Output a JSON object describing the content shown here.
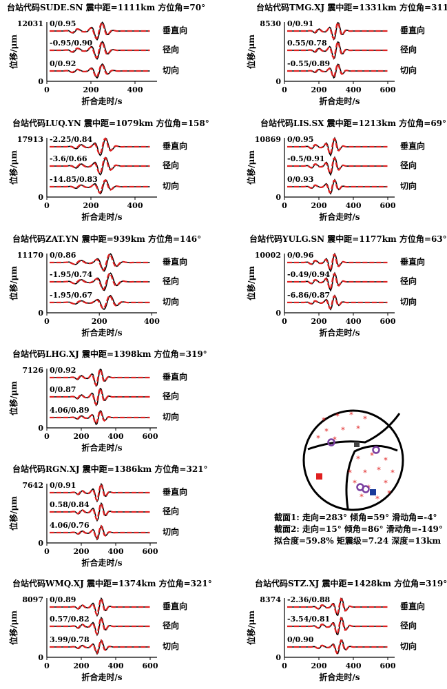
{
  "chart_data": [
    {
      "type": "line",
      "title": "台站代码SUDE.SN 震中距=1111km 方位角=70°",
      "ylabel": "位移/μm",
      "xlabel": "折合走时/s",
      "ymax_label": "12031",
      "ymin_label": "0",
      "xticks": [
        "0",
        "200",
        "400"
      ],
      "xlim": [
        0,
        500
      ],
      "traces": [
        {
          "component": "垂直向",
          "fit": "0/0.95",
          "peak": 240
        },
        {
          "component": "径向",
          "fit": "-0.95/0.90",
          "peak": 240
        },
        {
          "component": "切向",
          "fit": "0/0.92",
          "peak": 240
        }
      ],
      "series": [
        {
          "name": "observed",
          "color": "#000000"
        },
        {
          "name": "synthetic",
          "color": "#e02020"
        }
      ]
    },
    {
      "type": "line",
      "title": "台站代码TMG.XJ 震中距=1331km 方位角=311°",
      "ylabel": "位移/μm",
      "xlabel": "折合走时/s",
      "ymax_label": "8530",
      "ymin_label": "0",
      "xticks": [
        "0",
        "200",
        "400",
        "600"
      ],
      "xlim": [
        0,
        640
      ],
      "traces": [
        {
          "component": "垂直向",
          "fit": "0/0.91",
          "peak": 300
        },
        {
          "component": "径向",
          "fit": "0.55/0.78",
          "peak": 300
        },
        {
          "component": "切向",
          "fit": "-0.55/0.89",
          "peak": 300
        }
      ],
      "series": [
        {
          "name": "observed",
          "color": "#000000"
        },
        {
          "name": "synthetic",
          "color": "#e02020"
        }
      ]
    },
    {
      "type": "line",
      "title": "台站代码LUQ.YN 震中距=1079km 方位角=158°",
      "ylabel": "位移/μm",
      "xlabel": "折合走时/s",
      "ymax_label": "17913",
      "ymin_label": "0",
      "xticks": [
        "0",
        "200",
        "400"
      ],
      "xlim": [
        0,
        500
      ],
      "traces": [
        {
          "component": "垂直向",
          "fit": "-2.25/0.84",
          "peak": 255
        },
        {
          "component": "径向",
          "fit": "-3.6/0.66",
          "peak": 255
        },
        {
          "component": "切向",
          "fit": "-14.85/0.83",
          "peak": 255
        }
      ],
      "series": [
        {
          "name": "observed",
          "color": "#000000"
        },
        {
          "name": "synthetic",
          "color": "#e02020"
        }
      ]
    },
    {
      "type": "line",
      "title": "台站代码LIS.SX 震中距=1213km 方位角=69°",
      "ylabel": "位移/μm",
      "xlabel": "折合走时/s",
      "ymax_label": "10869",
      "ymin_label": "0",
      "xticks": [
        "0",
        "200",
        "400",
        "600"
      ],
      "xlim": [
        0,
        640
      ],
      "traces": [
        {
          "component": "垂直向",
          "fit": "0/0.95",
          "peak": 280
        },
        {
          "component": "径向",
          "fit": "-0.5/0.91",
          "peak": 280
        },
        {
          "component": "切向",
          "fit": "0/0.93",
          "peak": 280
        }
      ],
      "series": [
        {
          "name": "observed",
          "color": "#000000"
        },
        {
          "name": "synthetic",
          "color": "#e02020"
        }
      ]
    },
    {
      "type": "line",
      "title": "台站代码ZAT.YN 震中距=939km 方位角=146°",
      "ylabel": "位移/μm",
      "xlabel": "折合走时/s",
      "ymax_label": "11170",
      "ymin_label": "0",
      "xticks": [
        "0",
        "200",
        "400"
      ],
      "xlim": [
        0,
        420
      ],
      "traces": [
        {
          "component": "垂直向",
          "fit": "0/0.86",
          "peak": 230
        },
        {
          "component": "径向",
          "fit": "-1.95/0.74",
          "peak": 230
        },
        {
          "component": "切向",
          "fit": "-1.95/0.67",
          "peak": 230
        }
      ],
      "series": [
        {
          "name": "observed",
          "color": "#000000"
        },
        {
          "name": "synthetic",
          "color": "#e02020"
        }
      ]
    },
    {
      "type": "line",
      "title": "台站代码YULG.SN 震中距=1177km 方位角=63°",
      "ylabel": "位移/μm",
      "xlabel": "折合走时/s",
      "ymax_label": "10002",
      "ymin_label": "0",
      "xticks": [
        "0",
        "200",
        "400",
        "600"
      ],
      "xlim": [
        0,
        640
      ],
      "traces": [
        {
          "component": "垂直向",
          "fit": "0/0.96",
          "peak": 280
        },
        {
          "component": "径向",
          "fit": "-0.49/0.94",
          "peak": 280
        },
        {
          "component": "切向",
          "fit": "-6.86/0.87",
          "peak": 280
        }
      ],
      "series": [
        {
          "name": "observed",
          "color": "#000000"
        },
        {
          "name": "synthetic",
          "color": "#e02020"
        }
      ]
    },
    {
      "type": "line",
      "title": "台站代码LHG.XJ 震中距=1398km 方位角=319°",
      "ylabel": "位移/μm",
      "xlabel": "折合走时/s",
      "ymax_label": "7126",
      "ymin_label": "0",
      "xticks": [
        "0",
        "200",
        "400",
        "600"
      ],
      "xlim": [
        0,
        640
      ],
      "traces": [
        {
          "component": "垂直向",
          "fit": "0/0.92",
          "peak": 300
        },
        {
          "component": "径向",
          "fit": "0/0.87",
          "peak": 300
        },
        {
          "component": "切向",
          "fit": "4.06/0.89",
          "peak": 300
        }
      ],
      "series": [
        {
          "name": "observed",
          "color": "#000000"
        },
        {
          "name": "synthetic",
          "color": "#e02020"
        }
      ]
    },
    {
      "type": "line",
      "title": "台站代码RGN.XJ 震中距=1386km 方位角=321°",
      "ylabel": "位移/μm",
      "xlabel": "折合走时/s",
      "ymax_label": "7642",
      "ymin_label": "0",
      "xticks": [
        "0",
        "200",
        "400",
        "600"
      ],
      "xlim": [
        0,
        640
      ],
      "traces": [
        {
          "component": "垂直向",
          "fit": "0/0.91",
          "peak": 305
        },
        {
          "component": "径向",
          "fit": "0.58/0.84",
          "peak": 305
        },
        {
          "component": "切向",
          "fit": "4.06/0.76",
          "peak": 305
        }
      ],
      "series": [
        {
          "name": "observed",
          "color": "#000000"
        },
        {
          "name": "synthetic",
          "color": "#e02020"
        }
      ]
    },
    {
      "type": "line",
      "title": "台站代码WMQ.XJ 震中距=1374km 方位角=321°",
      "ylabel": "位移/μm",
      "xlabel": "折合走时/s",
      "ymax_label": "8097",
      "ymin_label": "0",
      "xticks": [
        "0",
        "200",
        "400",
        "600"
      ],
      "xlim": [
        0,
        640
      ],
      "traces": [
        {
          "component": "垂直向",
          "fit": "0/0.89",
          "peak": 305
        },
        {
          "component": "径向",
          "fit": "0.57/0.82",
          "peak": 305
        },
        {
          "component": "切向",
          "fit": "3.99/0.78",
          "peak": 305
        }
      ],
      "series": [
        {
          "name": "observed",
          "color": "#000000"
        },
        {
          "name": "synthetic",
          "color": "#e02020"
        }
      ]
    },
    {
      "type": "line",
      "title": "台站代码STZ.XJ 震中距=1428km 方位角=319°",
      "ylabel": "位移/μm",
      "xlabel": "折合走时/s",
      "ymax_label": "8374",
      "ymin_label": "0",
      "xticks": [
        "0",
        "200",
        "400",
        "600"
      ],
      "xlim": [
        0,
        640
      ],
      "traces": [
        {
          "component": "垂直向",
          "fit": "-2.36/0.88",
          "peak": 320
        },
        {
          "component": "径向",
          "fit": "-3.54/0.81",
          "peak": 320
        },
        {
          "component": "切向",
          "fit": "0/0.90",
          "peak": 320
        }
      ],
      "series": [
        {
          "name": "observed",
          "color": "#000000"
        },
        {
          "name": "synthetic",
          "color": "#e02020"
        }
      ]
    }
  ],
  "mechanism": {
    "line1": "截面1: 走向=283° 倾角=59°  滑动角=-4°",
    "line2": "截面2: 走向=15° 倾角=86°  滑动角=-149°",
    "line3": "拟合度=59.8% 矩震级=7.24 深度=13km",
    "colors": {
      "star": "#e02020",
      "red_square": "#e02020",
      "gray_square": "#444444",
      "blue_square": "#1a3a9a",
      "circle": "#7a3fa0"
    }
  }
}
